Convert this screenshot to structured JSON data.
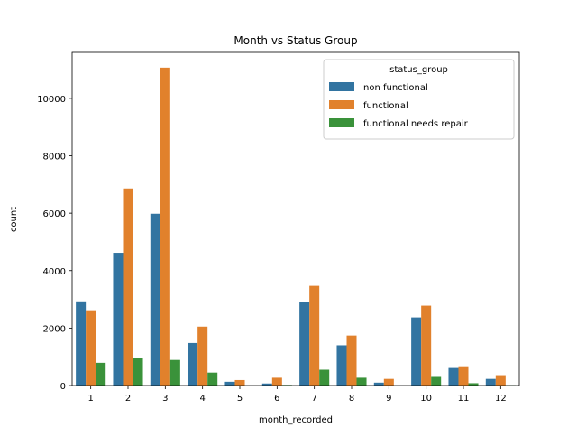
{
  "chart_data": {
    "type": "bar",
    "title": "Month vs Status Group",
    "xlabel": "month_recorded",
    "ylabel": "count",
    "categories": [
      "1",
      "2",
      "3",
      "4",
      "5",
      "6",
      "7",
      "8",
      "9",
      "10",
      "11",
      "12"
    ],
    "ylim": [
      0,
      11600
    ],
    "yticks": [
      0,
      2000,
      4000,
      6000,
      8000,
      10000
    ],
    "grid": false,
    "legend": {
      "title": "status_group",
      "placement": "top-right"
    },
    "series": [
      {
        "name": "non functional",
        "color": "#3274a1",
        "values": [
          2930,
          4620,
          5980,
          1480,
          130,
          70,
          2900,
          1400,
          100,
          2370,
          610,
          230
        ]
      },
      {
        "name": "functional",
        "color": "#e1812c",
        "values": [
          2620,
          6860,
          11070,
          2050,
          190,
          270,
          3470,
          1740,
          230,
          2780,
          670,
          360
        ]
      },
      {
        "name": "functional needs repair",
        "color": "#3a923a",
        "values": [
          790,
          960,
          890,
          450,
          0,
          20,
          550,
          270,
          0,
          330,
          80,
          10
        ]
      }
    ]
  }
}
